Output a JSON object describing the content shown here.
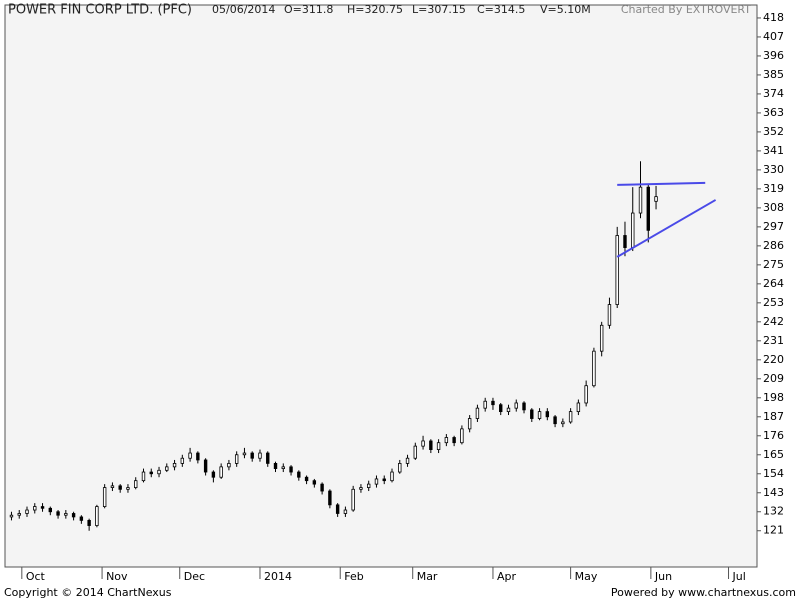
{
  "chart_data": {
    "type": "candlestick",
    "header": {
      "symbol": "POWER FIN CORP LTD. (PFC)",
      "date": "05/06/2014",
      "open": "O=311.8",
      "high": "H=320.75",
      "low": "L=307.15",
      "close": "C=314.5",
      "volume": "V=5.10M",
      "credit": "Charted By EXTROVERT"
    },
    "footer": {
      "left": "Copyright © 2014 ChartNexus",
      "right": "Powered by www.chartnexus.com"
    },
    "x": [
      -4,
      -1,
      2,
      5,
      8,
      11,
      14,
      17,
      20,
      23,
      26,
      29,
      32,
      35,
      38,
      41,
      44,
      47,
      50,
      53,
      56,
      59,
      62,
      65,
      68,
      71,
      74,
      77,
      80,
      83,
      86,
      89,
      92,
      95,
      98,
      101,
      104,
      107,
      110,
      113,
      116,
      119,
      122,
      125,
      128,
      131,
      134,
      137,
      140,
      143,
      146,
      149,
      152,
      155,
      158,
      161,
      164,
      167,
      170,
      173,
      176,
      179,
      182,
      185,
      188,
      191,
      194,
      197,
      200,
      203,
      206,
      209,
      212,
      215,
      218,
      221,
      224,
      227,
      230,
      233,
      236,
      239,
      242,
      245
    ],
    "open": [
      129,
      130,
      131,
      133,
      135,
      134,
      132,
      130,
      131,
      129,
      127,
      124,
      135,
      146,
      147,
      145,
      146,
      150,
      155,
      154,
      156,
      158,
      160,
      163,
      166,
      162,
      155,
      152,
      158,
      160,
      165,
      166,
      163,
      166,
      160,
      157,
      158,
      155,
      152,
      150,
      148,
      144,
      136,
      131,
      133,
      145,
      146,
      148,
      151,
      150,
      155,
      160,
      163,
      170,
      173,
      168,
      172,
      175,
      172,
      180,
      186,
      192,
      196,
      194,
      190,
      192,
      195,
      191,
      186,
      190,
      187,
      183,
      184,
      190,
      195,
      205,
      225,
      240,
      252,
      292,
      285,
      305,
      320,
      311.8
    ],
    "high": [
      132,
      133,
      135,
      137,
      137,
      135,
      133,
      133,
      132,
      130,
      128,
      136,
      148,
      149,
      148,
      148,
      152,
      157,
      157,
      158,
      160,
      162,
      165,
      169,
      167,
      163,
      156,
      160,
      162,
      167,
      169,
      167,
      168,
      167,
      161,
      160,
      159,
      156,
      153,
      151,
      149,
      145,
      137,
      135,
      147,
      148,
      150,
      153,
      153,
      157,
      162,
      165,
      172,
      176,
      174,
      174,
      177,
      176,
      182,
      188,
      194,
      198,
      198,
      195,
      194,
      197,
      196,
      192,
      192,
      192,
      188,
      186,
      192,
      197,
      208,
      227,
      242,
      256,
      297,
      300,
      320,
      335,
      322,
      320.75
    ],
    "low": [
      127,
      128,
      129,
      131,
      132,
      130,
      128,
      128,
      127,
      125,
      121,
      123,
      134,
      144,
      143,
      143,
      145,
      149,
      152,
      152,
      155,
      156,
      158,
      161,
      160,
      153,
      149,
      151,
      156,
      158,
      163,
      161,
      161,
      158,
      155,
      155,
      153,
      150,
      148,
      146,
      142,
      134,
      129,
      129,
      132,
      143,
      144,
      146,
      148,
      149,
      154,
      158,
      162,
      168,
      166,
      166,
      170,
      170,
      171,
      178,
      184,
      190,
      191,
      188,
      188,
      190,
      189,
      184,
      185,
      185,
      181,
      181,
      183,
      188,
      193,
      204,
      222,
      238,
      250,
      280,
      283,
      302,
      288,
      307.15
    ],
    "close": [
      130,
      131,
      133,
      135,
      134,
      132,
      130,
      131,
      129,
      127,
      124,
      135,
      146,
      147,
      145,
      146,
      150,
      155,
      154,
      156,
      158,
      160,
      163,
      166,
      162,
      155,
      152,
      158,
      160,
      165,
      166,
      163,
      166,
      160,
      157,
      158,
      155,
      152,
      150,
      148,
      144,
      136,
      131,
      133,
      145,
      146,
      148,
      151,
      150,
      155,
      160,
      163,
      170,
      173,
      168,
      172,
      175,
      172,
      180,
      186,
      192,
      196,
      194,
      190,
      192,
      195,
      191,
      186,
      190,
      187,
      183,
      184,
      190,
      195,
      205,
      225,
      240,
      252,
      292,
      285,
      305,
      320,
      295,
      314.5
    ],
    "up_color": "#ffffff",
    "down_color": "#000000",
    "trendlines": [
      {
        "color": "#4a4ae8",
        "x": [
          230,
          264
        ],
        "y": [
          321.3,
          322.5
        ]
      },
      {
        "color": "#4a4ae8",
        "x": [
          230,
          268
        ],
        "y": [
          279.6,
          312.6
        ]
      }
    ],
    "xlim": [
      -6.5,
      284
    ],
    "xticks": [
      {
        "value": 0,
        "label": "Oct"
      },
      {
        "value": 31,
        "label": "Nov"
      },
      {
        "value": 61,
        "label": "Dec"
      },
      {
        "value": 92,
        "label": "2014"
      },
      {
        "value": 123,
        "label": "Feb"
      },
      {
        "value": 151,
        "label": "Mar"
      },
      {
        "value": 182,
        "label": "Apr"
      },
      {
        "value": 212,
        "label": "May"
      },
      {
        "value": 243,
        "label": "Jun"
      },
      {
        "value": 273,
        "label": "Jul"
      }
    ],
    "ylim": [
      100,
      425.5
    ],
    "yticks": [
      121,
      132,
      143,
      154,
      165,
      176,
      187,
      198,
      209,
      220,
      231,
      242,
      253,
      264,
      275,
      286,
      297,
      308,
      319,
      330,
      341,
      352,
      363,
      374,
      385,
      396,
      407,
      418
    ]
  }
}
